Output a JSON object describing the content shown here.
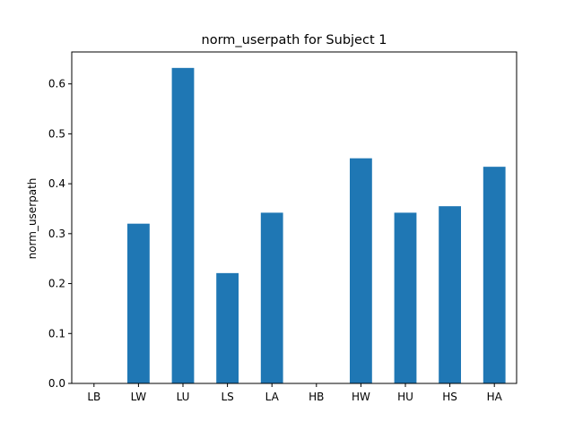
{
  "chart_data": {
    "type": "bar",
    "title": "norm_userpath for Subject 1",
    "xlabel": "",
    "ylabel": "norm_userpath",
    "categories": [
      "LB",
      "LW",
      "LU",
      "LS",
      "LA",
      "HB",
      "HW",
      "HU",
      "HS",
      "HA"
    ],
    "values": [
      0.0,
      0.32,
      0.632,
      0.221,
      0.342,
      0.0,
      0.451,
      0.342,
      0.355,
      0.434
    ],
    "ylim": [
      0.0,
      0.664
    ],
    "yticks": [
      "0.0",
      "0.1",
      "0.2",
      "0.3",
      "0.4",
      "0.5",
      "0.6"
    ],
    "ytick_values": [
      0.0,
      0.1,
      0.2,
      0.3,
      0.4,
      0.5,
      0.6
    ],
    "bar_color": "#1f77b4",
    "grid": false,
    "legend": "none"
  }
}
